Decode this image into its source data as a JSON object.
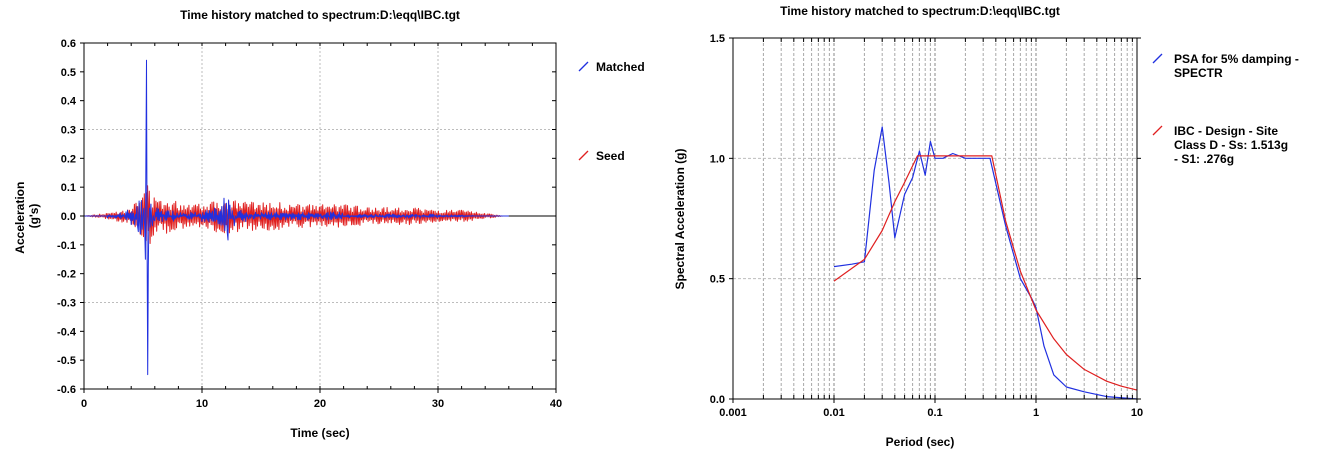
{
  "chart_data": [
    {
      "type": "line",
      "title": "Time history matched to spectrum:D:\\eqq\\IBC.tgt",
      "xlabel": "Time (sec)",
      "ylabel": "Acceleration (g's)",
      "xlim": [
        0,
        40
      ],
      "ylim": [
        -0.6,
        0.6
      ],
      "xticks": [
        "0",
        "10",
        "20",
        "30",
        "40"
      ],
      "yticks": [
        "-0.6",
        "-0.5",
        "-0.4",
        "-0.3",
        "-0.2",
        "-0.1",
        "0.0",
        "0.1",
        "0.2",
        "0.3",
        "0.4",
        "0.5",
        "0.6"
      ],
      "grid": true,
      "legend_position": "right",
      "series": [
        {
          "name": "Matched",
          "color": "#2030e0",
          "x": [
            0,
            1.5,
            2.0,
            2.5,
            3.0,
            3.5,
            4.0,
            4.3,
            4.6,
            4.8,
            5.0,
            5.2,
            5.3,
            5.35,
            5.4,
            5.5,
            5.6,
            5.8,
            6.0,
            6.5,
            7.0,
            8.0,
            9.0,
            10.0,
            11.0,
            11.5,
            11.8,
            12.0,
            12.2,
            12.3,
            12.5,
            12.8,
            13.0,
            14.0,
            16.0,
            18.0,
            20.0,
            22.0,
            25.0,
            28.0,
            30.0,
            33.0,
            35.0,
            36.0
          ],
          "y": [
            0,
            0.0,
            0.01,
            -0.01,
            0.02,
            -0.03,
            0.05,
            -0.06,
            0.08,
            -0.2,
            0.12,
            -0.15,
            0.54,
            -0.1,
            -0.55,
            0.2,
            -0.1,
            0.08,
            -0.05,
            0.04,
            -0.03,
            0.03,
            -0.02,
            0.03,
            -0.04,
            0.06,
            -0.1,
            0.19,
            -0.17,
            0.12,
            -0.08,
            0.05,
            -0.03,
            0.03,
            -0.02,
            0.02,
            -0.02,
            0.02,
            -0.01,
            0.01,
            -0.01,
            0.005,
            0.0,
            0.0
          ]
        },
        {
          "name": "Seed",
          "color": "#e02020",
          "x": [
            0,
            2,
            4,
            5,
            5.3,
            6,
            7,
            8,
            10,
            12,
            14,
            16,
            18,
            20,
            22,
            24,
            26,
            28,
            30,
            32,
            34,
            35.5
          ],
          "y": [
            0,
            0.01,
            -0.03,
            0.08,
            -0.13,
            0.06,
            -0.06,
            0.05,
            -0.05,
            0.06,
            -0.05,
            0.05,
            -0.04,
            0.04,
            -0.04,
            0.03,
            -0.03,
            0.03,
            -0.02,
            0.02,
            -0.01,
            0.0
          ]
        }
      ]
    },
    {
      "type": "line",
      "title": "Time history matched to spectrum:D:\\eqq\\IBC.tgt",
      "xlabel": "Period (sec)",
      "ylabel": "Spectral Acceleration (g)",
      "xscale": "log",
      "xlim": [
        0.001,
        10
      ],
      "ylim": [
        0.0,
        1.5
      ],
      "xticks": [
        "0.001",
        "0.01",
        "0.1",
        "1",
        "10"
      ],
      "yticks": [
        "0.0",
        "0.5",
        "1.0",
        "1.5"
      ],
      "grid": true,
      "legend_position": "right",
      "series": [
        {
          "name": "PSA for 5% damping - SPECTR",
          "color": "#2030e0",
          "x": [
            0.01,
            0.015,
            0.02,
            0.025,
            0.03,
            0.035,
            0.04,
            0.05,
            0.06,
            0.07,
            0.08,
            0.09,
            0.1,
            0.12,
            0.15,
            0.2,
            0.25,
            0.3,
            0.35,
            0.5,
            0.7,
            0.9,
            1.0,
            1.2,
            1.5,
            2.0,
            3.0,
            5.0,
            10.0
          ],
          "y": [
            0.55,
            0.56,
            0.57,
            0.95,
            1.13,
            0.9,
            0.67,
            0.85,
            0.92,
            1.03,
            0.93,
            1.07,
            1.0,
            1.0,
            1.02,
            1.0,
            1.0,
            1.0,
            1.0,
            0.72,
            0.5,
            0.42,
            0.38,
            0.22,
            0.1,
            0.05,
            0.03,
            0.01,
            0.0
          ]
        },
        {
          "name": "IBC - Design - Site Class D - Ss: 1.513g - S1: .276g",
          "color": "#e02020",
          "x": [
            0.01,
            0.02,
            0.03,
            0.04,
            0.05,
            0.067,
            0.1,
            0.2,
            0.3,
            0.365,
            0.5,
            0.7,
            1.0,
            1.5,
            2.0,
            3.0,
            5.0,
            7.0,
            10.0
          ],
          "y": [
            0.49,
            0.58,
            0.7,
            0.82,
            0.9,
            1.01,
            1.01,
            1.01,
            1.01,
            1.01,
            0.74,
            0.53,
            0.37,
            0.25,
            0.185,
            0.123,
            0.074,
            0.053,
            0.037
          ]
        }
      ]
    }
  ]
}
